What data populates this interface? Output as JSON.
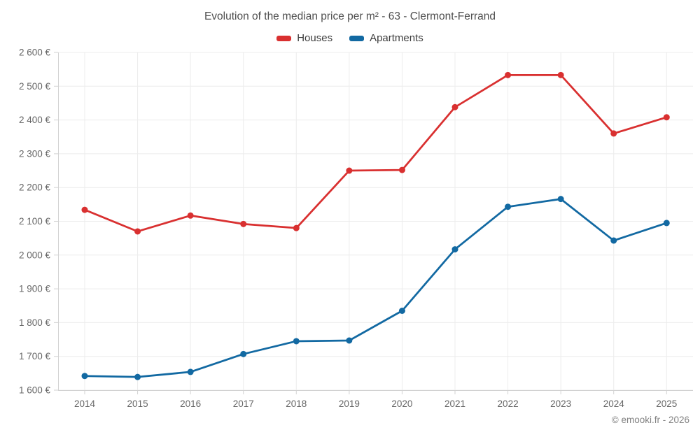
{
  "header": {
    "title": "Evolution of the median price per m² - 63 - Clermont-Ferrand"
  },
  "legend": {
    "items": [
      {
        "id": "houses",
        "label": "Houses",
        "color": "#d93030"
      },
      {
        "id": "apartments",
        "label": "Apartments",
        "color": "#1269a2"
      }
    ]
  },
  "footer": {
    "credit": "© emooki.fr - 2026"
  },
  "chart_data": {
    "type": "line",
    "title": "Evolution of the median price per m² - 63 - Clermont-Ferrand",
    "categories": [
      "2014",
      "2015",
      "2016",
      "2017",
      "2018",
      "2019",
      "2020",
      "2021",
      "2022",
      "2023",
      "2024",
      "2025"
    ],
    "series": [
      {
        "name": "Houses",
        "color": "#d93030",
        "values": [
          2134,
          2070,
          2117,
          2092,
          2080,
          2250,
          2252,
          2438,
          2533,
          2533,
          2360,
          2408
        ]
      },
      {
        "name": "Apartments",
        "color": "#1269a2",
        "values": [
          1642,
          1639,
          1654,
          1707,
          1745,
          1747,
          1835,
          2017,
          2143,
          2166,
          2043,
          2095
        ]
      }
    ],
    "xlabel": "",
    "ylabel": "",
    "ylim": [
      1600,
      2600
    ],
    "y_ticks": [
      1600,
      1700,
      1800,
      1900,
      2000,
      2100,
      2200,
      2300,
      2400,
      2500,
      2600
    ],
    "y_tick_labels": [
      "1 600 €",
      "1 700 €",
      "1 800 €",
      "1 900 €",
      "2 000 €",
      "2 100 €",
      "2 200 €",
      "2 300 €",
      "2 400 €",
      "2 500 €",
      "2 600 €"
    ],
    "unit": "€",
    "grid": true,
    "legend_position": "top",
    "marker": "circle"
  },
  "colors": {
    "houses": "#d93030",
    "apartments": "#1269a2",
    "gridline": "#ececec",
    "axis": "#d2d2d2",
    "tick_text": "#666666",
    "title_text": "#4f4f4f",
    "legend_text": "#3d3d3d",
    "footer_text": "#828282"
  }
}
